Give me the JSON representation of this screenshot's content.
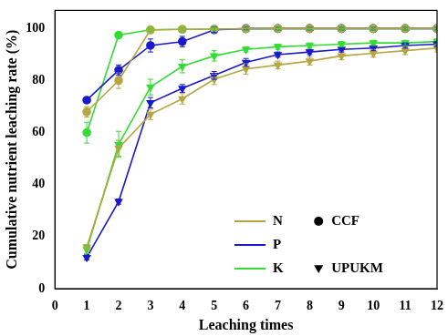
{
  "chart_data": {
    "type": "line",
    "x_label": "Leaching times",
    "y_label": "Cumulative nutrient leaching rate (%)",
    "x": [
      1,
      2,
      3,
      4,
      5,
      6,
      7,
      8,
      9,
      10,
      11,
      12
    ],
    "xlim": [
      0,
      12
    ],
    "xticks": [
      0,
      1,
      2,
      3,
      4,
      5,
      6,
      7,
      8,
      9,
      10,
      11,
      12
    ],
    "ylim": [
      0,
      107
    ],
    "yticks": [
      0,
      20,
      40,
      60,
      80,
      100
    ],
    "grid": false,
    "legend": "lower right",
    "series": [
      {
        "name": "N",
        "group": "CCF",
        "color": "#b5a642",
        "marker": "circle",
        "values": [
          68,
          80,
          99.5,
          99.7,
          99.8,
          99.9,
          100,
          100,
          100,
          100,
          100,
          100
        ],
        "errors": [
          2,
          3,
          1,
          0.5,
          0.5,
          0.5,
          0.5,
          0.5,
          0.5,
          0.5,
          0.5,
          0.5
        ]
      },
      {
        "name": "P",
        "group": "CCF",
        "color": "#1a1acc",
        "marker": "circle",
        "values": [
          72.5,
          84,
          93.5,
          95,
          99.5,
          100,
          100,
          100,
          100,
          100,
          100,
          100
        ],
        "errors": [
          1,
          2,
          2.5,
          2,
          1,
          0.5,
          0.5,
          0.5,
          0.5,
          0.5,
          0.5,
          0.5
        ]
      },
      {
        "name": "K",
        "group": "CCF",
        "color": "#33dd33",
        "marker": "circle",
        "values": [
          60,
          97.5,
          99.5,
          99.7,
          99.8,
          99.9,
          100,
          100,
          100,
          100,
          100,
          100
        ],
        "errors": [
          4,
          1,
          0.5,
          0.5,
          0.5,
          0.5,
          0.5,
          0.5,
          0.5,
          0.5,
          0.5,
          0.5
        ]
      },
      {
        "name": "N",
        "group": "UPUKM",
        "color": "#b5a642",
        "marker": "triangle_down",
        "values": [
          16,
          54,
          67,
          73,
          80.5,
          84.5,
          86,
          87.5,
          89.5,
          90.5,
          91.5,
          92.5
        ],
        "errors": [
          1,
          3,
          2,
          2,
          2,
          2,
          1.5,
          1.5,
          1.5,
          1.5,
          1.5,
          1.5
        ]
      },
      {
        "name": "P",
        "group": "UPUKM",
        "color": "#1a1acc",
        "marker": "triangle_down",
        "values": [
          12,
          33.5,
          71.5,
          77,
          82,
          87,
          90,
          91,
          92,
          92.5,
          93.5,
          94
        ],
        "errors": [
          1,
          1,
          2,
          1.5,
          1.5,
          1.5,
          1,
          1,
          1,
          1,
          1,
          1
        ]
      },
      {
        "name": "K",
        "group": "UPUKM",
        "color": "#33dd33",
        "marker": "triangle_down",
        "values": [
          15,
          55.5,
          77.5,
          85.5,
          89.5,
          92,
          93,
          93.5,
          94,
          94.5,
          94.5,
          95
        ],
        "errors": [
          1.5,
          5,
          3,
          2.5,
          2,
          1,
          1,
          1,
          1,
          1,
          1,
          1
        ]
      }
    ]
  }
}
